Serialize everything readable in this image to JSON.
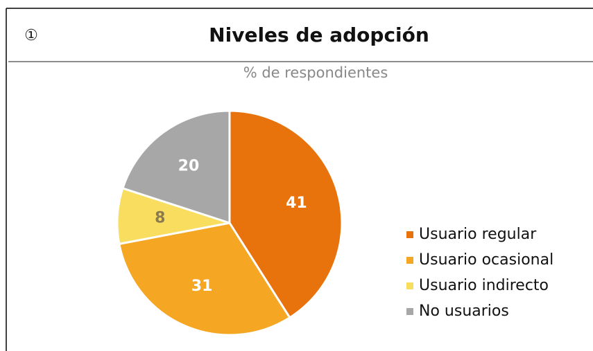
{
  "chart_data": {
    "type": "pie",
    "badge": "①",
    "title": "Niveles de adopción",
    "subtitle": "% de respondientes",
    "categories": [
      "Usuario regular",
      "Usuario ocasional",
      "Usuario indirecto",
      "No usuarios"
    ],
    "values": [
      41,
      31,
      8,
      20
    ],
    "colors": [
      "#e8720c",
      "#f5a623",
      "#f8dd5e",
      "#a7a7a7"
    ],
    "legend": "right"
  }
}
